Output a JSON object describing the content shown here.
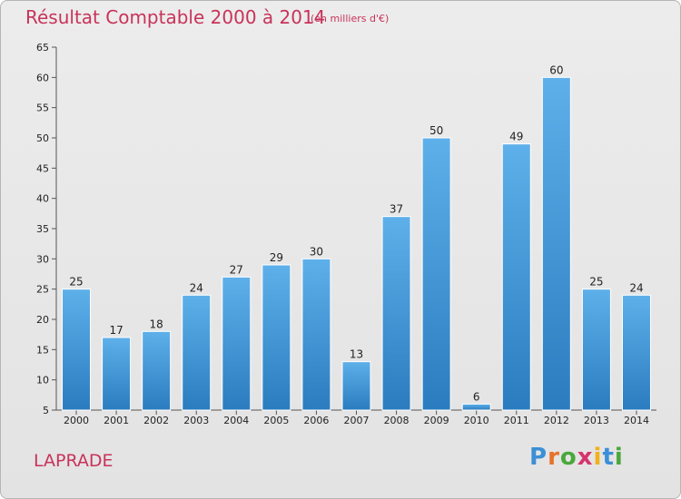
{
  "header": {
    "title": "Résultat Comptable 2000 à 2014",
    "subtitle": "(en milliers d'€)"
  },
  "footer": {
    "location": "LAPRADE",
    "logo_letters": [
      "P",
      "r",
      "o",
      "x",
      "i",
      "t",
      "i"
    ],
    "logo_colors": [
      "#3b8fd6",
      "#e8722a",
      "#4aa83c",
      "#d6336c",
      "#f0b11c",
      "#3b8fd6",
      "#4aa83c"
    ]
  },
  "chart_data": {
    "type": "bar",
    "title": "Résultat Comptable 2000 à 2014",
    "subtitle": "(en milliers d'€)",
    "xlabel": "",
    "ylabel": "",
    "categories": [
      "2000",
      "2001",
      "2002",
      "2003",
      "2004",
      "2005",
      "2006",
      "2007",
      "2008",
      "2009",
      "2010",
      "2011",
      "2012",
      "2013",
      "2014"
    ],
    "values": [
      25,
      17,
      18,
      24,
      27,
      29,
      30,
      13,
      37,
      50,
      6,
      49,
      60,
      25,
      24
    ],
    "ylim": [
      5,
      65
    ],
    "yticks": [
      5,
      10,
      15,
      20,
      25,
      30,
      35,
      40,
      45,
      50,
      55,
      60,
      65
    ],
    "grid": false,
    "bar_color_top": "#5eb0ea",
    "bar_color_bottom": "#2a7cbf",
    "bar_edge_color": "#ffffff"
  }
}
